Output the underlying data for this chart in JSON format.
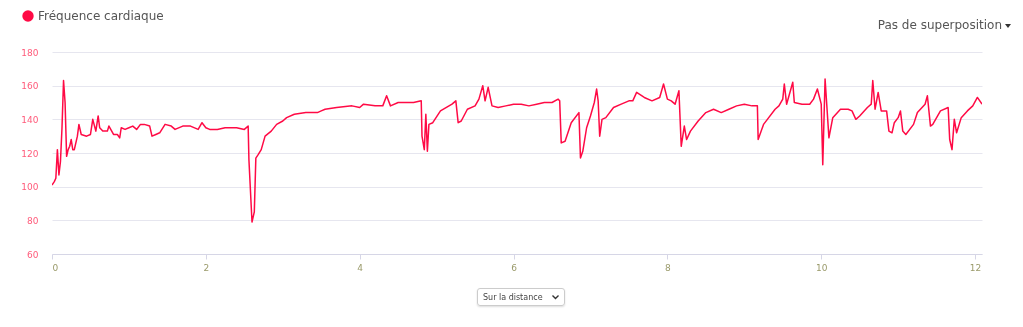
{
  "chart_data": {
    "type": "line",
    "legend": "top left",
    "grid": "y",
    "xlim": [
      0,
      12.09
    ],
    "ylim": [
      60,
      180
    ],
    "xticks": [
      0,
      2,
      4,
      6,
      8,
      10,
      12
    ],
    "yticks": [
      60,
      80,
      100,
      120,
      140,
      160,
      180
    ],
    "annotations": [
      "Pas de superposition",
      "Sur la distance"
    ],
    "x": [
      0,
      0.03,
      0.05,
      0.07,
      0.09,
      0.11,
      0.13,
      0.15,
      0.17,
      0.19,
      0.21,
      0.23,
      0.25,
      0.27,
      0.29,
      0.33,
      0.35,
      0.38,
      0.45,
      0.5,
      0.53,
      0.57,
      0.6,
      0.62,
      0.66,
      0.72,
      0.74,
      0.8,
      0.85,
      0.88,
      0.9,
      0.95,
      1.0,
      1.05,
      1.1,
      1.15,
      1.2,
      1.27,
      1.3,
      1.35,
      1.4,
      1.47,
      1.55,
      1.6,
      1.7,
      1.8,
      1.9,
      1.95,
      2.0,
      2.05,
      2.15,
      2.25,
      2.4,
      2.5,
      2.55,
      2.56,
      2.6,
      2.63,
      2.65,
      2.68,
      2.72,
      2.77,
      2.85,
      2.92,
      3.0,
      3.05,
      3.15,
      3.3,
      3.45,
      3.5,
      3.55,
      3.7,
      3.9,
      4.0,
      4.05,
      4.2,
      4.3,
      4.35,
      4.4,
      4.5,
      4.6,
      4.7,
      4.8,
      4.81,
      4.84,
      4.86,
      4.88,
      4.9,
      4.95,
      5.05,
      5.2,
      5.25,
      5.28,
      5.32,
      5.4,
      5.5,
      5.55,
      5.6,
      5.63,
      5.67,
      5.72,
      5.8,
      5.9,
      6.0,
      6.1,
      6.2,
      6.3,
      6.4,
      6.5,
      6.58,
      6.6,
      6.62,
      6.67,
      6.75,
      6.85,
      6.87,
      6.9,
      6.95,
      7.0,
      7.05,
      7.08,
      7.1,
      7.12,
      7.15,
      7.2,
      7.3,
      7.4,
      7.5,
      7.55,
      7.6,
      7.7,
      7.8,
      7.9,
      7.95,
      8.0,
      8.05,
      8.1,
      8.15,
      8.18,
      8.22,
      8.25,
      8.3,
      8.4,
      8.5,
      8.6,
      8.7,
      8.8,
      8.9,
      9.0,
      9.1,
      9.17,
      9.18,
      9.25,
      9.3,
      9.4,
      9.45,
      9.5,
      9.52,
      9.55,
      9.63,
      9.65,
      9.75,
      9.85,
      9.9,
      9.95,
      10.0,
      10.02,
      10.05,
      10.1,
      10.15,
      10.25,
      10.35,
      10.4,
      10.45,
      10.5,
      10.6,
      10.65,
      10.67,
      10.7,
      10.74,
      10.78,
      10.85,
      10.88,
      10.92,
      10.95,
      11.0,
      11.03,
      11.06,
      11.1,
      11.2,
      11.25,
      11.35,
      11.38,
      11.42,
      11.45,
      11.55,
      11.65,
      11.67,
      11.7,
      11.73,
      11.76,
      11.82,
      11.9,
      11.97,
      12.03,
      12.09
    ],
    "series": [
      {
        "name": "Fréquence cardiaque",
        "color": "#ff0a45",
        "values": [
          101,
          103,
          105,
          122,
          107,
          115,
          135,
          163,
          150,
          118,
          122,
          124,
          128,
          122,
          122,
          130,
          137,
          131,
          130,
          131,
          140,
          133,
          142,
          135,
          133,
          133,
          136,
          131,
          131,
          129,
          135,
          134,
          135,
          136,
          134,
          137,
          137,
          136,
          130,
          131,
          132,
          137,
          136,
          134,
          136,
          136,
          134,
          138,
          135,
          134,
          134,
          135,
          135,
          134,
          136,
          116,
          79,
          85,
          117,
          119,
          122,
          130,
          133,
          137,
          139,
          141,
          143,
          144,
          144,
          145,
          146,
          147,
          148,
          147,
          149,
          148,
          148,
          154,
          148,
          150,
          150,
          150,
          151,
          130,
          122,
          143,
          121,
          137,
          138,
          145,
          149,
          151,
          138,
          139,
          146,
          148,
          152,
          160,
          151,
          159,
          148,
          147,
          148,
          149,
          149,
          148,
          149,
          150,
          150,
          152,
          151,
          126,
          127,
          138,
          144,
          117,
          121,
          135,
          142,
          150,
          158,
          151,
          130,
          140,
          141,
          147,
          149,
          151,
          151,
          156,
          153,
          151,
          153,
          161,
          152,
          151,
          149,
          157,
          124,
          136,
          128,
          133,
          139,
          144,
          146,
          144,
          146,
          148,
          149,
          148,
          148,
          128,
          137,
          140,
          146,
          148,
          152,
          161,
          149,
          162,
          150,
          149,
          149,
          152,
          158,
          149,
          113,
          164,
          129,
          141,
          146,
          146,
          145,
          140,
          142,
          147,
          149,
          163,
          146,
          156,
          145,
          145,
          133,
          132,
          138,
          141,
          145,
          133,
          131,
          137,
          144,
          149,
          154,
          136,
          137,
          145,
          147,
          128,
          122,
          140,
          132,
          141,
          145,
          148,
          153,
          149
        ]
      }
    ]
  }
}
